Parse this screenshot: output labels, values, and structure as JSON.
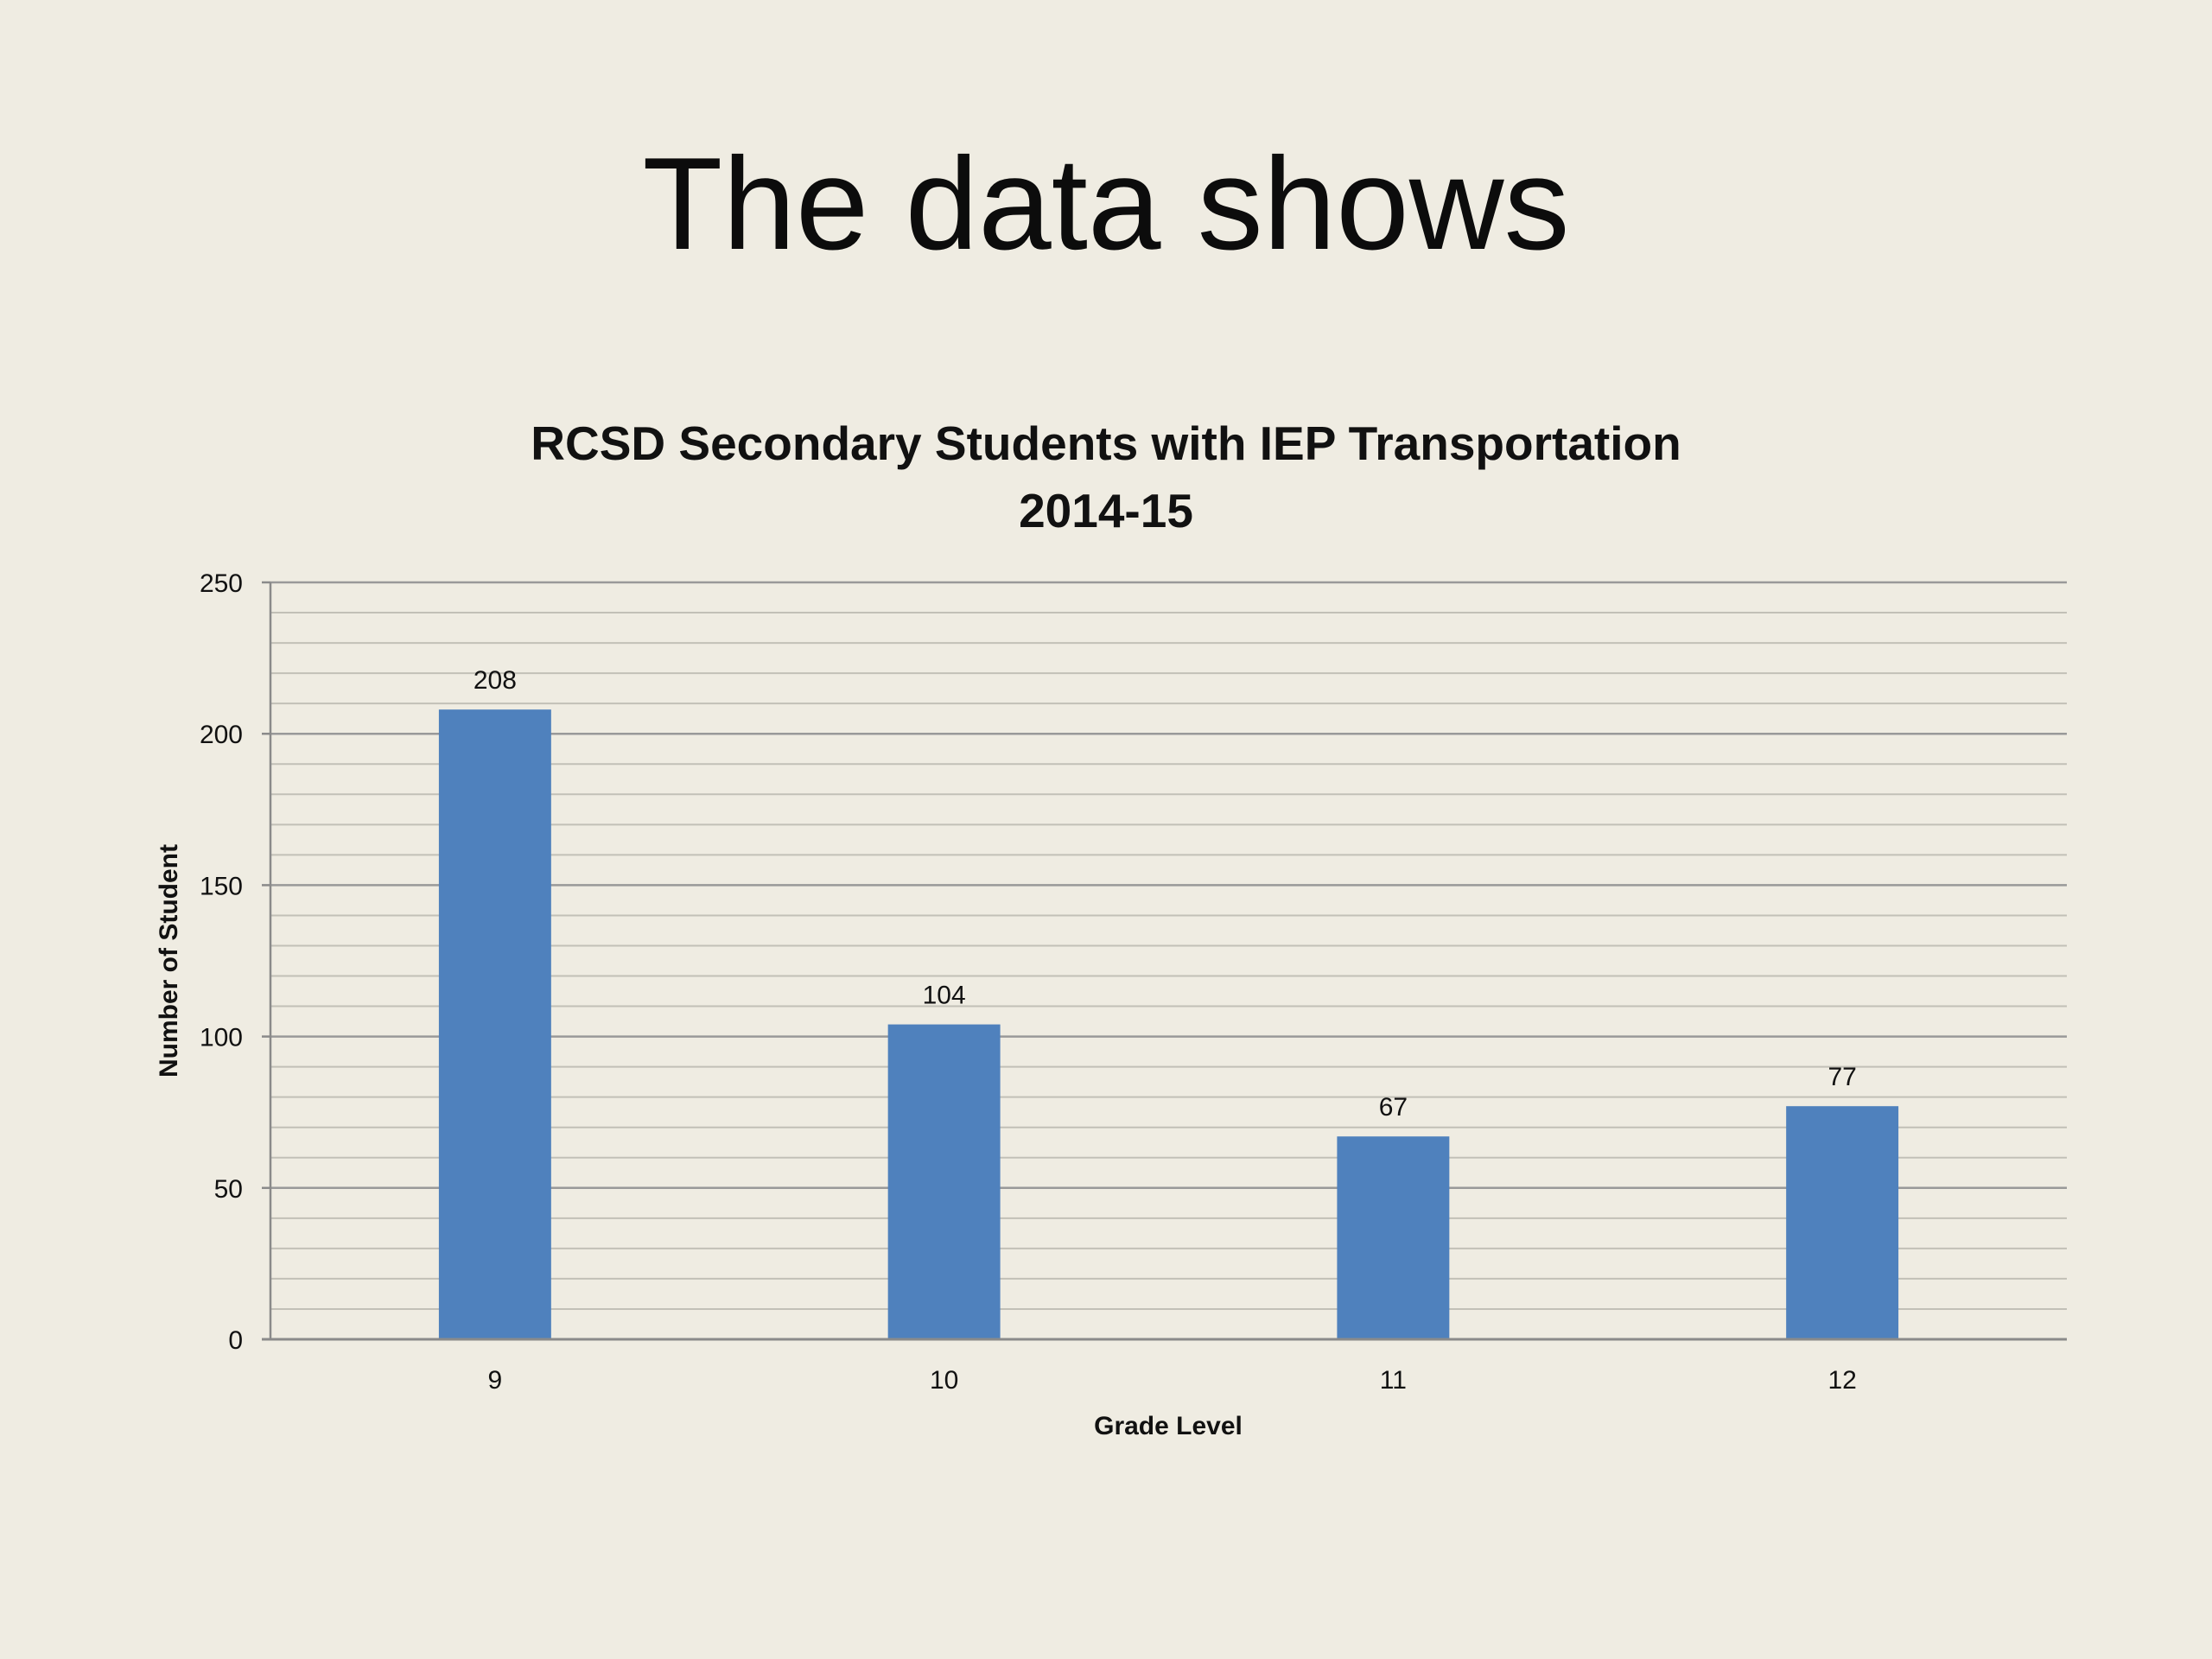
{
  "slide": {
    "title": "The data shows"
  },
  "chart_data": {
    "type": "bar",
    "title": "RCSD Secondary Students with IEP Transportation",
    "subtitle": "2014-15",
    "xlabel": "Grade Level",
    "ylabel": "Number of Student",
    "categories": [
      "9",
      "10",
      "11",
      "12"
    ],
    "values": [
      208,
      104,
      67,
      77
    ],
    "data_labels": [
      "208",
      "104",
      "67",
      "77"
    ],
    "ylim": [
      0,
      250
    ],
    "y_ticks": [
      0,
      50,
      100,
      150,
      200,
      250
    ],
    "y_tick_labels": [
      "0",
      "50",
      "100",
      "150",
      "200",
      "250"
    ],
    "minor_grid_step": 10,
    "grid": true,
    "legend": "none",
    "colors": {
      "bar": "#4f81bd",
      "major_grid": "#999999",
      "minor_grid": "#c2c0b7",
      "axis": "#8a8a8a",
      "text": "#111111"
    }
  }
}
